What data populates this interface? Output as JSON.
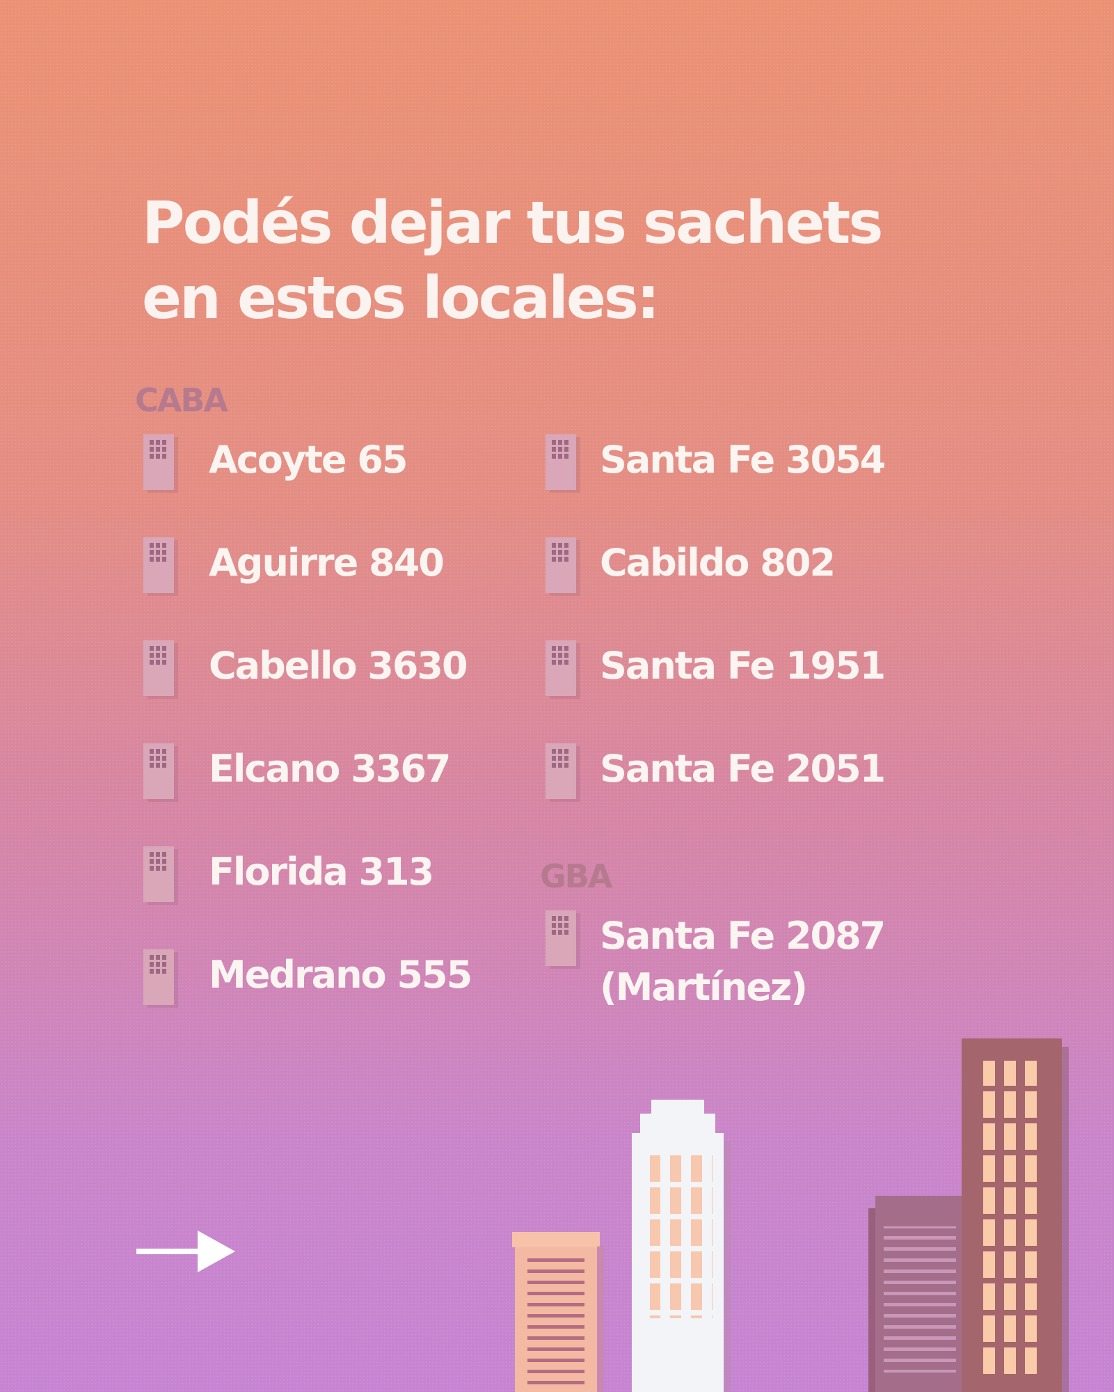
{
  "title_lines": [
    "Podés dejar tus sachets",
    "en estos locales:"
  ],
  "regions": {
    "caba": "CABA",
    "gba": "GBA"
  },
  "caba_left": [
    "Acoyte 65",
    "Aguirre 840",
    "Cabello 3630",
    "Elcano 3367",
    "Florida 313",
    "Medrano 555"
  ],
  "caba_right": [
    "Santa Fe 3054",
    "Cabildo 802",
    "Santa Fe 1951",
    "Santa Fe 2051"
  ],
  "gba": [
    "Santa Fe 2087",
    "(Martínez)"
  ],
  "icons": {
    "address": "building-door-icon",
    "next": "arrow-right-icon",
    "decor": "city-skyline-illustration"
  },
  "colors": {
    "text": "#fbf5f2",
    "region_label": "#b67a8e",
    "door": "#d9a7b8"
  }
}
